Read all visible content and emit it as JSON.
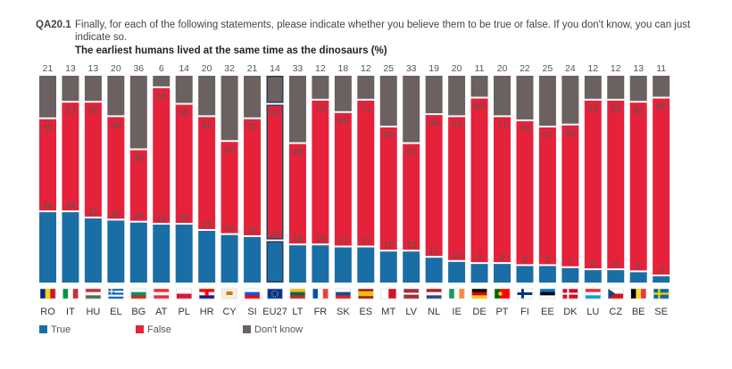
{
  "header": {
    "qid": "QA20.1",
    "question": "Finally, for each of the following statements, please indicate whether you believe them to be true or false. If you don't know, you can just indicate so.",
    "subtitle": "The earliest humans lived at the same time as the dinosaurs (%)"
  },
  "colors": {
    "true": "#1a6ea6",
    "false": "#e5223a",
    "dontknow": "#6b6161",
    "highlight": "#2a3b55"
  },
  "legend": {
    "true": "True",
    "false": "False",
    "dontknow": "Don't know"
  },
  "chart_data": {
    "type": "bar",
    "stacked": true,
    "title": "The earliest humans lived at the same time as the dinosaurs (%)",
    "ylim": [
      0,
      100
    ],
    "highlight": "EU27",
    "categories": [
      "RO",
      "IT",
      "HU",
      "EL",
      "BG",
      "AT",
      "PL",
      "HR",
      "CY",
      "SI",
      "EU27",
      "LT",
      "FR",
      "SK",
      "ES",
      "MT",
      "LV",
      "NL",
      "IE",
      "DE",
      "PT",
      "FI",
      "EE",
      "DK",
      "LU",
      "CZ",
      "BE",
      "SE"
    ],
    "series": [
      {
        "name": "True",
        "values": [
          34,
          34,
          31,
          30,
          29,
          28,
          28,
          25,
          23,
          22,
          20,
          18,
          18,
          17,
          17,
          15,
          15,
          12,
          10,
          9,
          9,
          8,
          8,
          7,
          6,
          6,
          5,
          3
        ]
      },
      {
        "name": "False",
        "values": [
          45,
          53,
          56,
          50,
          35,
          66,
          58,
          55,
          45,
          57,
          66,
          49,
          70,
          65,
          71,
          60,
          52,
          69,
          70,
          80,
          71,
          70,
          67,
          69,
          82,
          82,
          82,
          86
        ]
      },
      {
        "name": "Don't know",
        "values": [
          21,
          13,
          13,
          20,
          36,
          6,
          14,
          20,
          32,
          21,
          14,
          33,
          12,
          18,
          12,
          25,
          33,
          19,
          20,
          11,
          20,
          22,
          25,
          24,
          12,
          12,
          13,
          11
        ]
      }
    ]
  },
  "flags": {
    "RO": {
      "type": "v",
      "c": [
        "#002b7f",
        "#fcd116",
        "#ce1126"
      ]
    },
    "IT": {
      "type": "v",
      "c": [
        "#009246",
        "#ffffff",
        "#ce2b37"
      ]
    },
    "HU": {
      "type": "h",
      "c": [
        "#ce2939",
        "#ffffff",
        "#477050"
      ]
    },
    "EL": {
      "type": "h",
      "c": [
        "#0d5eaf",
        "#ffffff",
        "#0d5eaf",
        "#ffffff",
        "#0d5eaf"
      ]
    },
    "BG": {
      "type": "h",
      "c": [
        "#ffffff",
        "#00966e",
        "#d62612"
      ]
    },
    "AT": {
      "type": "h",
      "c": [
        "#ed2939",
        "#ffffff",
        "#ed2939"
      ]
    },
    "PL": {
      "type": "h",
      "c": [
        "#ffffff",
        "#dc143c"
      ]
    },
    "HR": {
      "type": "h",
      "c": [
        "#ff0000",
        "#ffffff",
        "#171796"
      ]
    },
    "CY": {
      "type": "h",
      "c": [
        "#f6f1e4"
      ]
    },
    "SI": {
      "type": "h",
      "c": [
        "#ffffff",
        "#005ce5",
        "#ff0000"
      ]
    },
    "EU27": {
      "type": "h",
      "c": [
        "#003399"
      ]
    },
    "LT": {
      "type": "h",
      "c": [
        "#fdb913",
        "#006a44",
        "#c1272d"
      ]
    },
    "FR": {
      "type": "v",
      "c": [
        "#0055a4",
        "#ffffff",
        "#ef4135"
      ]
    },
    "SK": {
      "type": "h",
      "c": [
        "#ffffff",
        "#0b4ea2",
        "#ee1c25"
      ]
    },
    "ES": {
      "type": "h",
      "c": [
        "#aa151b",
        "#f1bf00",
        "#f1bf00",
        "#aa151b"
      ]
    },
    "MT": {
      "type": "v",
      "c": [
        "#ffffff",
        "#cf142b"
      ]
    },
    "LV": {
      "type": "h",
      "c": [
        "#9e3039",
        "#9e3039",
        "#ffffff",
        "#9e3039",
        "#9e3039"
      ]
    },
    "NL": {
      "type": "h",
      "c": [
        "#ae1c28",
        "#ffffff",
        "#21468b"
      ]
    },
    "IE": {
      "type": "v",
      "c": [
        "#169b62",
        "#ffffff",
        "#ff883e"
      ]
    },
    "DE": {
      "type": "h",
      "c": [
        "#000000",
        "#dd0000",
        "#ffce00"
      ]
    },
    "PT": {
      "type": "v",
      "c": [
        "#006600",
        "#ff0000",
        "#ff0000"
      ]
    },
    "FI": {
      "type": "h",
      "c": [
        "#ffffff"
      ]
    },
    "EE": {
      "type": "h",
      "c": [
        "#0072ce",
        "#000000",
        "#ffffff"
      ]
    },
    "DK": {
      "type": "h",
      "c": [
        "#c8102e"
      ]
    },
    "LU": {
      "type": "h",
      "c": [
        "#ed2939",
        "#ffffff",
        "#00a1de"
      ]
    },
    "CZ": {
      "type": "h",
      "c": [
        "#ffffff",
        "#d7141a"
      ]
    },
    "BE": {
      "type": "v",
      "c": [
        "#000000",
        "#fdda24",
        "#ef3340"
      ]
    },
    "SE": {
      "type": "h",
      "c": [
        "#006aa7"
      ]
    }
  }
}
